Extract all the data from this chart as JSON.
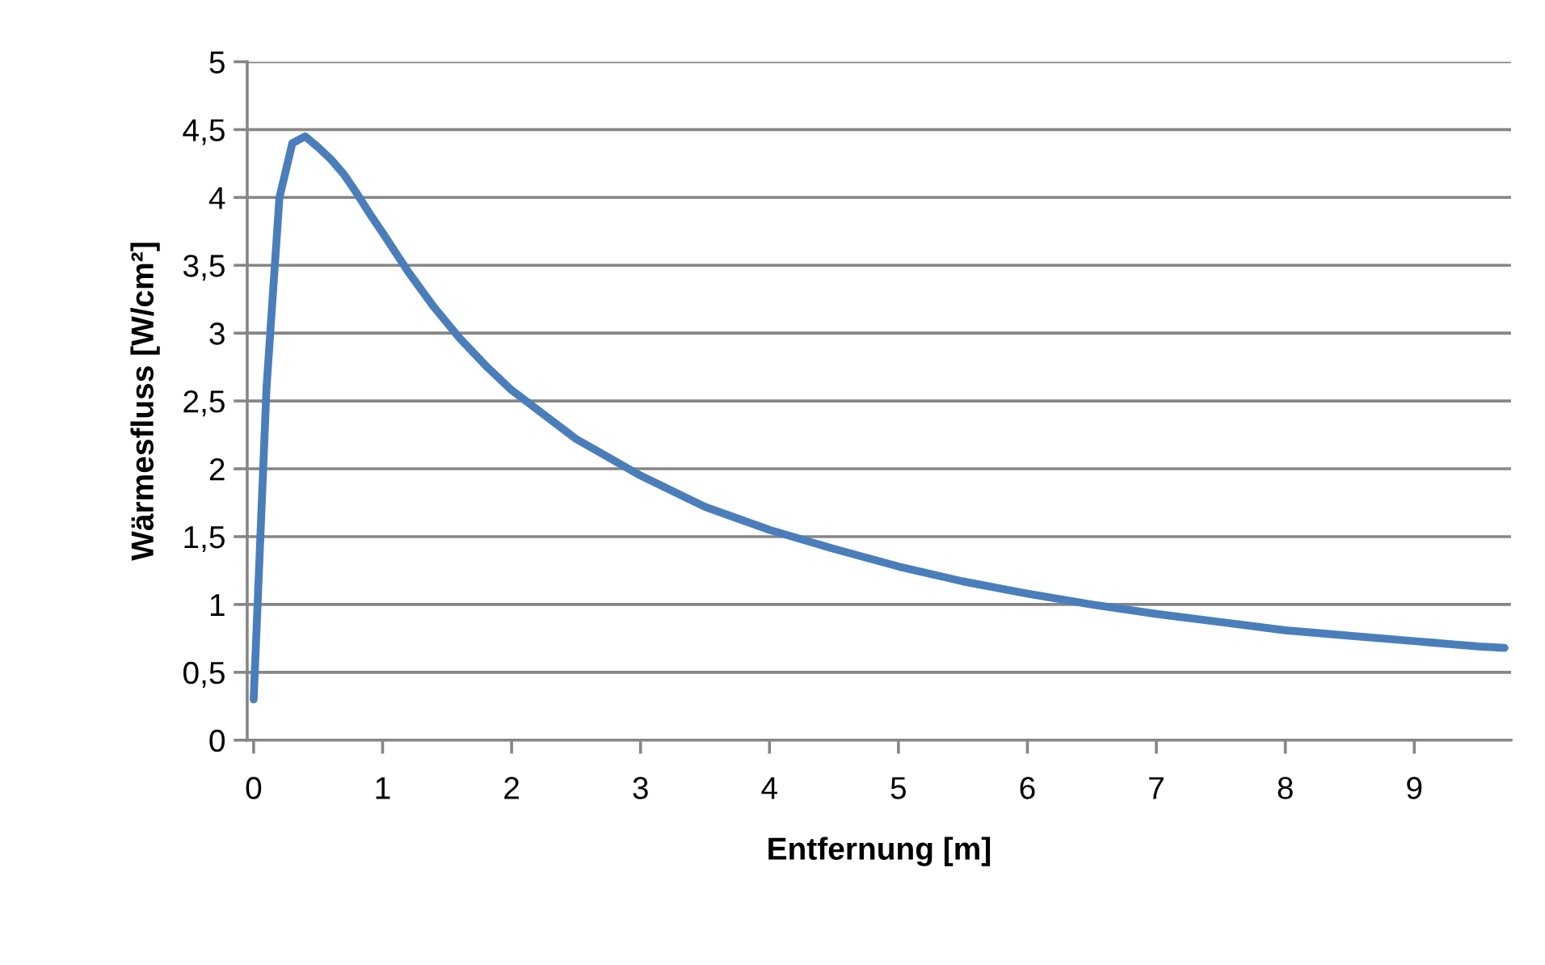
{
  "chart_data": {
    "type": "line",
    "xlabel": "Entfernung [m]",
    "ylabel": "Wärmesfluss [W/cm²]",
    "x": [
      0,
      0.1,
      0.2,
      0.3,
      0.4,
      0.5,
      0.6,
      0.7,
      0.8,
      0.9,
      1.0,
      1.2,
      1.4,
      1.6,
      1.8,
      2.0,
      2.5,
      3.0,
      3.5,
      4.0,
      4.5,
      5.0,
      5.5,
      6.0,
      6.5,
      7.0,
      7.5,
      8.0,
      8.5,
      9.0,
      9.5,
      9.7
    ],
    "series": [
      {
        "color": "#4a7ebb",
        "values": [
          0.3,
          2.6,
          4.0,
          4.4,
          4.45,
          4.37,
          4.28,
          4.17,
          4.03,
          3.88,
          3.74,
          3.45,
          3.19,
          2.96,
          2.76,
          2.58,
          2.22,
          1.95,
          1.72,
          1.55,
          1.41,
          1.28,
          1.17,
          1.08,
          1.0,
          0.93,
          0.87,
          0.81,
          0.77,
          0.73,
          0.69,
          0.68
        ]
      }
    ],
    "xlim": [
      -0.05,
      9.75
    ],
    "xticks": [
      0,
      1,
      2,
      3,
      4,
      5,
      6,
      7,
      8,
      9
    ],
    "ylim": [
      0,
      5
    ],
    "yticks": [
      0,
      {
        "value": 0.5,
        "label": "0,5"
      },
      1,
      {
        "value": 1.5,
        "label": "1,5"
      },
      2,
      {
        "value": 2.5,
        "label": "2,5"
      },
      3,
      {
        "value": 3.5,
        "label": "3,5"
      },
      4,
      {
        "value": 4.5,
        "label": "4,5"
      },
      5
    ],
    "grid": "y",
    "legend": false,
    "marker": "none",
    "line_style": "solid"
  }
}
